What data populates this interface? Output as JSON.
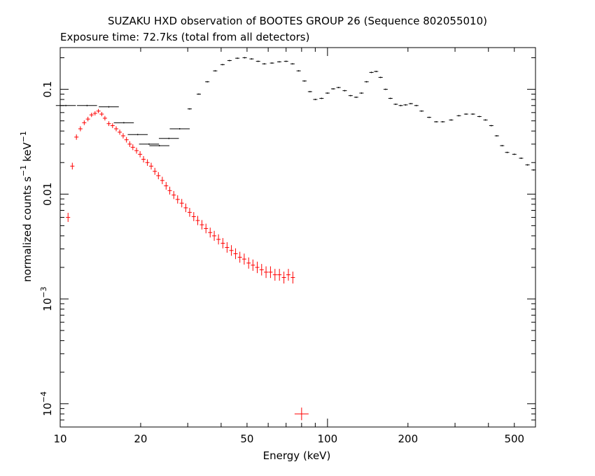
{
  "title": "SUZAKU HXD observation of BOOTES GROUP 26 (Sequence 802055010)",
  "subtitle": "Exposure time: 72.7ks (total from all detectors)",
  "chart_data": {
    "type": "scatter",
    "title": "SUZAKU HXD observation of BOOTES GROUP 26 (Sequence 802055010)",
    "subtitle": "Exposure time: 72.7ks (total from all detectors)",
    "xlabel": "Energy (keV)",
    "ylabel": "normalized counts s^-1 keV^-1",
    "xscale": "log",
    "yscale": "log",
    "xlim": [
      10,
      600
    ],
    "ylim": [
      6e-05,
      0.25
    ],
    "grid": false,
    "legend": "none",
    "x_ticks": [
      {
        "value": 10,
        "label": "10"
      },
      {
        "value": 20,
        "label": "20"
      },
      {
        "value": 50,
        "label": "50"
      },
      {
        "value": 100,
        "label": "100"
      },
      {
        "value": 200,
        "label": "200"
      },
      {
        "value": 500,
        "label": "500"
      }
    ],
    "y_ticks": [
      {
        "value": 0.1,
        "label": "0.1",
        "exp": ""
      },
      {
        "value": 0.01,
        "label": "0.01",
        "exp": ""
      },
      {
        "value": 0.001,
        "label": "10",
        "exp": "−3"
      },
      {
        "value": 0.0001,
        "label": "10",
        "exp": "−4"
      }
    ],
    "series": [
      {
        "color": "#ff0000",
        "x": [
          10.7,
          11.1,
          11.5,
          11.9,
          12.3,
          12.7,
          13.1,
          13.5,
          13.9,
          14.3,
          14.7,
          15.2,
          15.7,
          16.2,
          16.7,
          17.2,
          17.7,
          18.2,
          18.7,
          19.3,
          19.9,
          20.5,
          21.2,
          21.9,
          22.6,
          23.3,
          24.1,
          24.9,
          25.7,
          26.6,
          27.5,
          28.5,
          29.5,
          30.5,
          31.6,
          32.7,
          33.9,
          35.1,
          36.4,
          37.7,
          39.1,
          40.6,
          42.1,
          43.7,
          45.3,
          47.0,
          48.8,
          50.7,
          52.6,
          54.6,
          56.7,
          58.9,
          61.2,
          63.6,
          66.1,
          68.7,
          71.4,
          74.2,
          80.0
        ],
        "y": [
          0.006,
          0.0185,
          0.035,
          0.042,
          0.048,
          0.052,
          0.057,
          0.059,
          0.062,
          0.058,
          0.053,
          0.047,
          0.045,
          0.042,
          0.039,
          0.036,
          0.033,
          0.03,
          0.028,
          0.026,
          0.024,
          0.0215,
          0.02,
          0.0185,
          0.0165,
          0.015,
          0.0135,
          0.012,
          0.0108,
          0.0098,
          0.0089,
          0.0082,
          0.0074,
          0.0067,
          0.0061,
          0.0056,
          0.0051,
          0.0047,
          0.0043,
          0.004,
          0.0037,
          0.0034,
          0.0031,
          0.0029,
          0.0027,
          0.0025,
          0.0024,
          0.0022,
          0.0021,
          0.002,
          0.0019,
          0.0018,
          0.0018,
          0.0017,
          0.0017,
          0.0016,
          0.0017,
          0.0016,
          8e-05
        ]
      },
      {
        "color": "#000000",
        "x": [
          10.5,
          12.6,
          15.2,
          17.3,
          19.5,
          21.5,
          23.5,
          25.5,
          28.0,
          30.5,
          33.0,
          35.5,
          38.0,
          40.5,
          43.0,
          46.0,
          49.0,
          52.0,
          55.0,
          58.0,
          62.0,
          66.0,
          70.0,
          74.0,
          78.0,
          82.0,
          86.0,
          90.0,
          95.0,
          100.0,
          105.0,
          110.0,
          116.0,
          122.0,
          128.0,
          134.0,
          140.0,
          146.0,
          152.0,
          158.0,
          165.0,
          172.0,
          180.0,
          188.0,
          196.0,
          205.0,
          215.0,
          225.0,
          240.0,
          255.0,
          270.0,
          290.0,
          310.0,
          330.0,
          350.0,
          370.0,
          390.0,
          410.0,
          430.0,
          450.0,
          470.0,
          500.0,
          530.0,
          560.0,
          590.0
        ],
        "y": [
          0.07,
          0.07,
          0.068,
          0.048,
          0.037,
          0.03,
          0.029,
          0.034,
          0.042,
          0.065,
          0.09,
          0.118,
          0.15,
          0.172,
          0.188,
          0.198,
          0.2,
          0.195,
          0.185,
          0.175,
          0.178,
          0.183,
          0.185,
          0.175,
          0.15,
          0.12,
          0.095,
          0.08,
          0.082,
          0.092,
          0.101,
          0.104,
          0.097,
          0.087,
          0.084,
          0.092,
          0.118,
          0.145,
          0.148,
          0.13,
          0.1,
          0.082,
          0.072,
          0.07,
          0.071,
          0.073,
          0.07,
          0.062,
          0.054,
          0.049,
          0.049,
          0.051,
          0.056,
          0.058,
          0.058,
          0.055,
          0.051,
          0.045,
          0.036,
          0.029,
          0.025,
          0.024,
          0.022,
          0.019,
          0.017
        ]
      }
    ]
  }
}
